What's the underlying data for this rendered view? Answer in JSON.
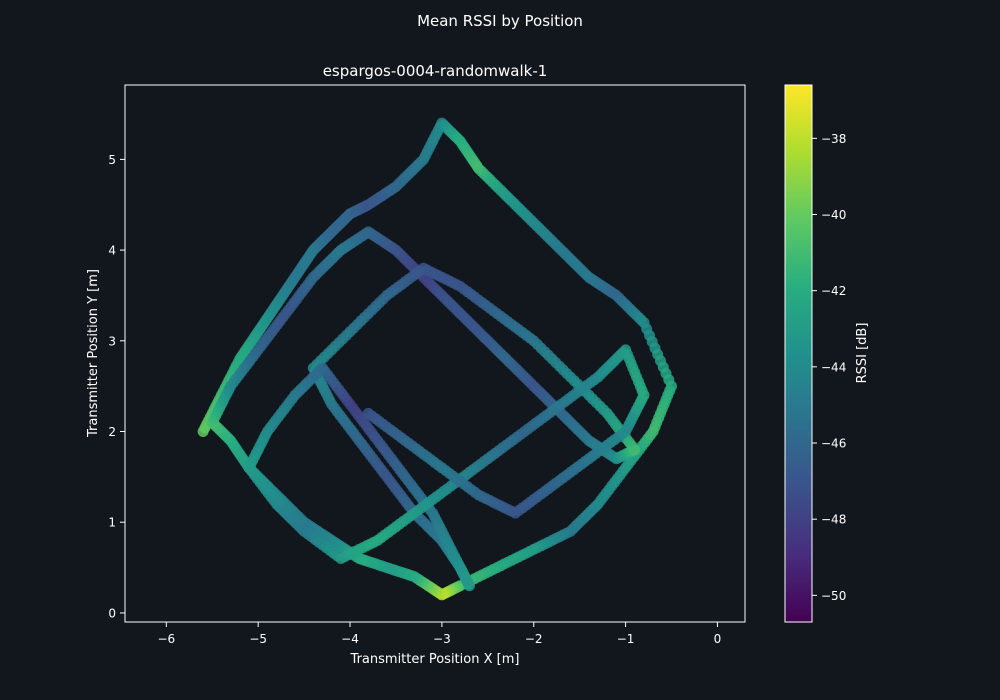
{
  "chart_data": {
    "type": "scatter",
    "suptitle": "Mean RSSI by Position",
    "title": "espargos-0004-randomwalk-1",
    "xlabel": "Transmitter Position X [m]",
    "ylabel": "Transmitter Position Y [m]",
    "xlim": [
      -6.45,
      0.3
    ],
    "ylim": [
      -0.1,
      5.82
    ],
    "xticks": [
      -6,
      -5,
      -4,
      -3,
      -2,
      -1,
      0
    ],
    "yticks": [
      0,
      1,
      2,
      3,
      4,
      5
    ],
    "grid": false,
    "colorbar": {
      "label": "RSSI [dB]",
      "range": [
        -50.7,
        -36.6
      ],
      "ticks": [
        -38,
        -40,
        -42,
        -44,
        -46,
        -48,
        -50
      ],
      "colormap": "viridis"
    },
    "series": [
      {
        "description_points": "approximate polyline through the walk, value = RSSI",
        "x": [
          -5.6,
          -5.4,
          -5.2,
          -5.0,
          -4.8,
          -4.6,
          -4.4,
          -4.2,
          -4.0,
          -3.8,
          -3.5,
          -3.2,
          -3.0,
          -2.8,
          -2.6,
          -2.3,
          -2.0,
          -1.7,
          -1.4,
          -1.1,
          -0.8,
          -0.5,
          -0.7,
          -1.0,
          -1.3,
          -1.6,
          -2.0,
          -2.4,
          -2.8,
          -3.0,
          -3.3,
          -3.6,
          -3.9,
          -4.2,
          -4.5,
          -4.8,
          -5.1,
          -5.3,
          -5.5,
          -5.3,
          -5.0,
          -4.7,
          -4.4,
          -4.1,
          -3.8,
          -3.5,
          -3.2,
          -2.9,
          -2.6,
          -2.3,
          -2.0,
          -1.7,
          -1.4,
          -1.1,
          -0.9,
          -1.2,
          -1.6,
          -2.0,
          -2.4,
          -2.8,
          -3.2,
          -3.6,
          -4.0,
          -4.4,
          -4.2,
          -3.9,
          -3.6,
          -3.3,
          -3.0,
          -2.8,
          -2.7,
          -2.9,
          -3.1,
          -3.4,
          -3.7,
          -4.0,
          -4.3,
          -4.6,
          -4.9,
          -5.1,
          -4.8,
          -4.5,
          -4.1,
          -3.7,
          -3.3,
          -2.9,
          -2.5,
          -2.1,
          -1.7,
          -1.3,
          -1.0,
          -0.8,
          -1.0,
          -1.4,
          -1.8,
          -2.2,
          -2.6,
          -3.0,
          -3.4,
          -3.8
        ],
        "y": [
          2.0,
          2.4,
          2.8,
          3.1,
          3.4,
          3.7,
          4.0,
          4.2,
          4.4,
          4.5,
          4.7,
          5.0,
          5.4,
          5.2,
          4.9,
          4.6,
          4.3,
          4.0,
          3.7,
          3.5,
          3.2,
          2.5,
          2.0,
          1.6,
          1.2,
          0.9,
          0.7,
          0.5,
          0.3,
          0.2,
          0.4,
          0.5,
          0.6,
          0.8,
          1.0,
          1.3,
          1.6,
          1.9,
          2.1,
          2.5,
          2.9,
          3.3,
          3.7,
          4.0,
          4.2,
          4.0,
          3.7,
          3.4,
          3.1,
          2.8,
          2.5,
          2.2,
          1.9,
          1.7,
          1.8,
          2.2,
          2.6,
          3.0,
          3.3,
          3.6,
          3.8,
          3.5,
          3.1,
          2.7,
          2.3,
          1.9,
          1.5,
          1.1,
          0.8,
          0.5,
          0.3,
          0.7,
          1.1,
          1.5,
          1.9,
          2.3,
          2.7,
          2.4,
          2.0,
          1.6,
          1.2,
          0.9,
          0.6,
          0.8,
          1.1,
          1.4,
          1.7,
          2.0,
          2.3,
          2.6,
          2.9,
          2.4,
          2.0,
          1.7,
          1.4,
          1.1,
          1.3,
          1.6,
          1.9,
          2.2
        ],
        "values": [
          -40,
          -41,
          -42,
          -43,
          -44,
          -45,
          -45,
          -46,
          -46,
          -47,
          -46,
          -45,
          -44,
          -42,
          -41,
          -43,
          -44,
          -45,
          -45,
          -46,
          -44,
          -42,
          -41,
          -43,
          -44,
          -45,
          -43,
          -42,
          -41,
          -38,
          -42,
          -43,
          -42,
          -44,
          -45,
          -44,
          -43,
          -42,
          -41,
          -44,
          -46,
          -47,
          -46,
          -45,
          -46,
          -47,
          -48,
          -47,
          -47,
          -46,
          -47,
          -46,
          -45,
          -44,
          -41,
          -43,
          -44,
          -45,
          -46,
          -47,
          -47,
          -46,
          -45,
          -44,
          -45,
          -46,
          -47,
          -46,
          -45,
          -44,
          -43,
          -44,
          -45,
          -46,
          -47,
          -48,
          -46,
          -45,
          -44,
          -43,
          -44,
          -45,
          -43,
          -42,
          -43,
          -44,
          -45,
          -46,
          -45,
          -44,
          -43,
          -42,
          -44,
          -45,
          -46,
          -47,
          -46,
          -45,
          -46,
          -47
        ]
      }
    ]
  }
}
